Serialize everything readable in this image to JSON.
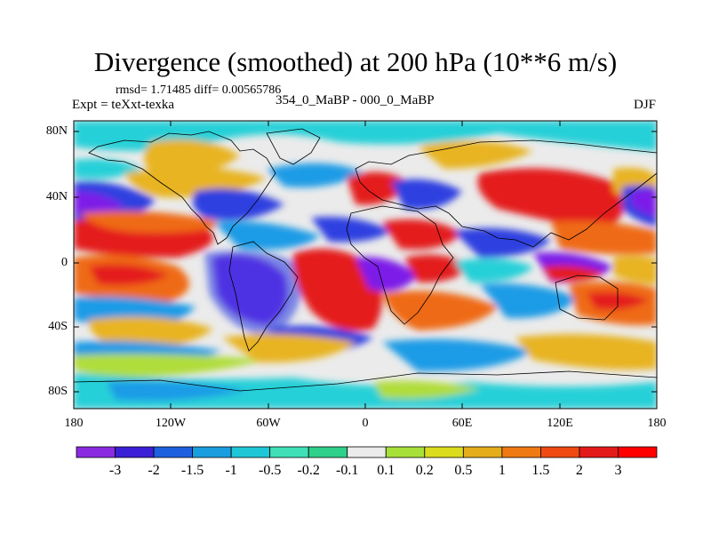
{
  "title": "Divergence (smoothed) at 200 hPa (10**6 m/s)",
  "stats": "rmsd= 1.71485 diff= 0.00565786",
  "experiment": "Expt = teXxt-texka",
  "comparison": "354_0_MaBP - 000_0_MaBP",
  "season": "DJF",
  "lat_labels": [
    "80N",
    "40N",
    "0",
    "40S",
    "80S"
  ],
  "lon_labels": [
    "180",
    "120W",
    "60W",
    "0",
    "60E",
    "120E",
    "180"
  ],
  "colorbar": {
    "labels": [
      "-3",
      "-2",
      "-1.5",
      "-1",
      "-0.5",
      "-0.2",
      "-0.1",
      "0.1",
      "0.2",
      "0.5",
      "1",
      "1.5",
      "2",
      "3"
    ],
    "colors": [
      "#8a2be2",
      "#3b1fd6",
      "#1e5fe0",
      "#1a9ee0",
      "#1fc6d6",
      "#3fe0b8",
      "#2fd08a",
      "#ebebeb",
      "#a8e03a",
      "#dcdc1e",
      "#e6ad1a",
      "#ef7a14",
      "#ef4a12",
      "#e41a1a",
      "#ff0000"
    ]
  },
  "field_colors": {
    "strong_neg": "#7d1fe8",
    "neg": "#2f3fe0",
    "mild_neg": "#1e9be6",
    "weak_neg": "#25d0d8",
    "neutral": "#ebebeb",
    "weak_pos": "#b0dd3a",
    "mild_pos": "#e8b422",
    "pos": "#ef6a14",
    "strong_pos": "#e41a1a"
  }
}
